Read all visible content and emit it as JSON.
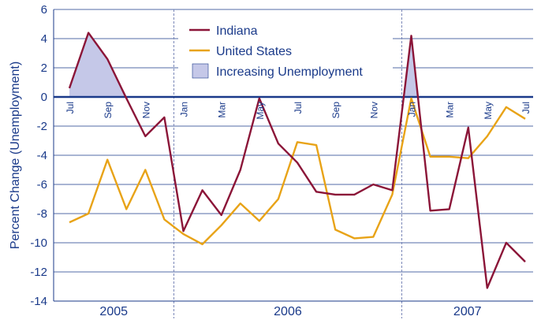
{
  "chart_data": {
    "type": "line",
    "title": "",
    "ylabel": "Percent Change (Unemployment)",
    "xlabel": "",
    "ylim": [
      -14,
      6
    ],
    "yticks": [
      6,
      4,
      2,
      0,
      -2,
      -4,
      -6,
      -8,
      -10,
      -12,
      -14
    ],
    "x": [
      "Jul 2005",
      "Aug 2005",
      "Sep 2005",
      "Oct 2005",
      "Nov 2005",
      "Dec 2005",
      "Jan 2006",
      "Feb 2006",
      "Mar 2006",
      "Apr 2006",
      "May 2006",
      "Jun 2006",
      "Jul 2006",
      "Aug 2006",
      "Sep 2006",
      "Oct 2006",
      "Nov 2006",
      "Dec 2006",
      "Jan 2007",
      "Feb 2007",
      "Mar 2007",
      "Apr 2007",
      "May 2007",
      "Jun 2007",
      "Jul 2007"
    ],
    "month_labels": [
      {
        "index": 0,
        "label": "Jul"
      },
      {
        "index": 2,
        "label": "Sep"
      },
      {
        "index": 4,
        "label": "Nov"
      },
      {
        "index": 6,
        "label": "Jan"
      },
      {
        "index": 8,
        "label": "Mar"
      },
      {
        "index": 10,
        "label": "May"
      },
      {
        "index": 12,
        "label": "Jul"
      },
      {
        "index": 14,
        "label": "Sep"
      },
      {
        "index": 16,
        "label": "Nov"
      },
      {
        "index": 18,
        "label": "Jan"
      },
      {
        "index": 20,
        "label": "Mar"
      },
      {
        "index": 22,
        "label": "May"
      },
      {
        "index": 24,
        "label": "Jul"
      }
    ],
    "years": [
      {
        "label": "2005",
        "start": 0,
        "end": 5
      },
      {
        "label": "2006",
        "start": 6,
        "end": 17
      },
      {
        "label": "2007",
        "start": 18,
        "end": 24
      }
    ],
    "series": [
      {
        "name": "Indiana",
        "color": "#8b1538",
        "values": [
          0.6,
          4.4,
          2.6,
          -0.1,
          -2.7,
          -1.4,
          -9.2,
          -6.4,
          -8.1,
          -5.0,
          -0.1,
          -3.2,
          -4.5,
          -6.5,
          -6.7,
          -6.7,
          -6.0,
          -6.4,
          4.2,
          -7.8,
          -7.7,
          -2.1,
          -13.1,
          -10.0,
          -11.3
        ]
      },
      {
        "name": "United States",
        "color": "#e8a317",
        "values": [
          -8.6,
          -8.0,
          -4.3,
          -7.7,
          -5.0,
          -8.4,
          -9.4,
          -10.1,
          -8.8,
          -7.3,
          -8.5,
          -7.0,
          -3.1,
          -3.3,
          -9.1,
          -9.7,
          -9.6,
          -6.7,
          -0.1,
          -4.1,
          -4.1,
          -4.2,
          -2.7,
          -0.7,
          -1.5
        ]
      }
    ],
    "shaded_series": "Indiana",
    "legend": [
      {
        "label": "Indiana",
        "type": "line",
        "color": "#8b1538"
      },
      {
        "label": "United States",
        "type": "line",
        "color": "#e8a317"
      },
      {
        "label": "Increasing Unemployment",
        "type": "area",
        "color": "#c5c8e8"
      }
    ],
    "legend_position": "top-center",
    "grid": true,
    "colors": {
      "axis": "#1a3a8a",
      "grid": "#1a3a8a",
      "shade": "#c5c8e8",
      "divider": "#7a86b8"
    }
  }
}
